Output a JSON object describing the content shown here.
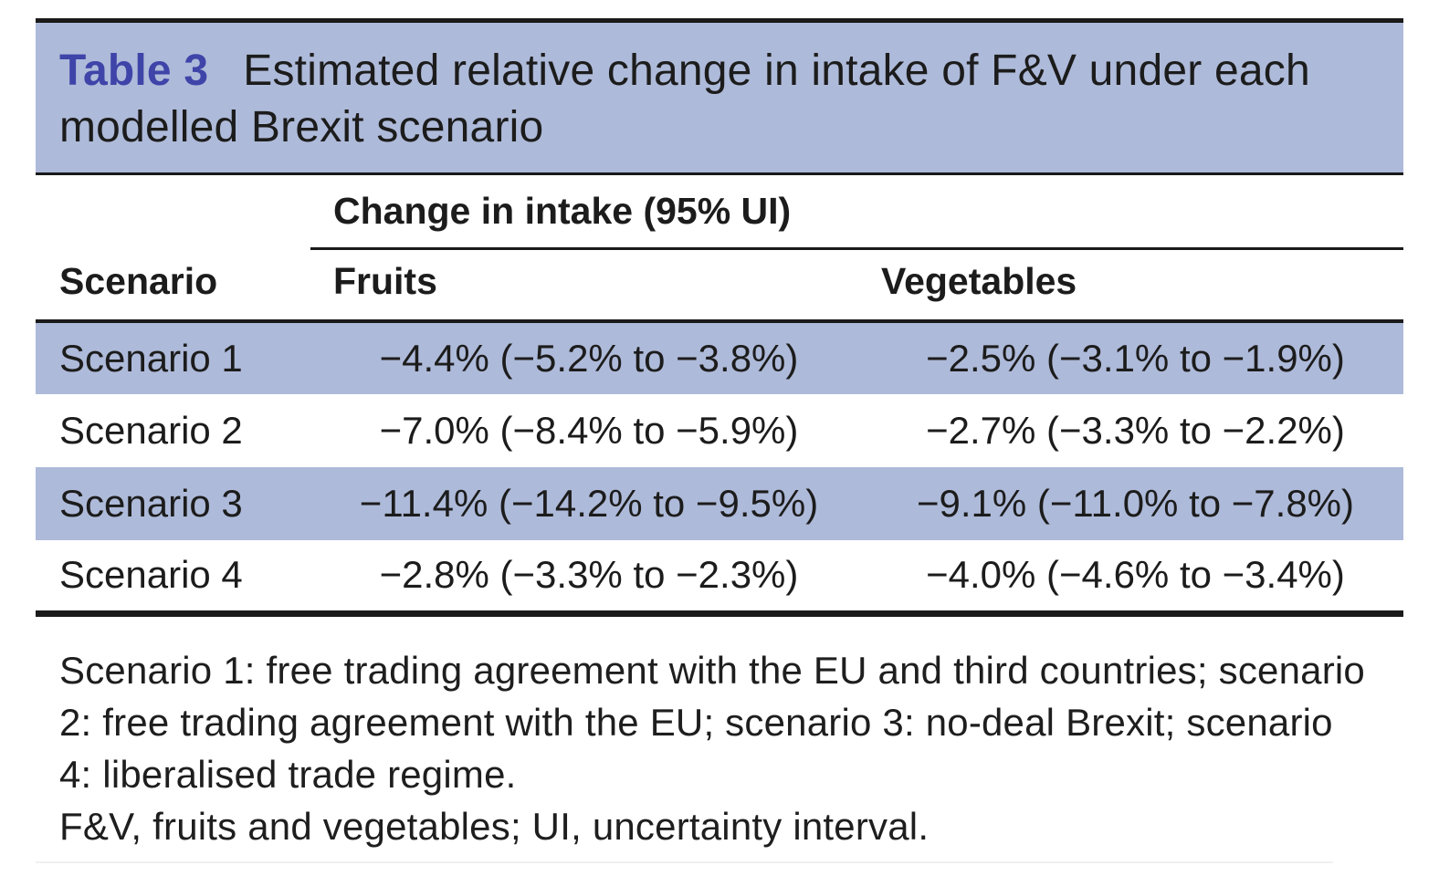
{
  "table": {
    "label": "Table 3",
    "title": "Estimated relative change in intake of F&V under each modelled Brexit scenario",
    "spanner": "Change in intake (95% UI)",
    "columns": {
      "scenario": "Scenario",
      "fruits": "Fruits",
      "vegetables": "Vegetables"
    },
    "rows": [
      {
        "scenario": "Scenario 1",
        "fruits": "−4.4% (−5.2% to −3.8%)",
        "vegetables": "−2.5% (−3.1% to −1.9%)"
      },
      {
        "scenario": "Scenario 2",
        "fruits": "−7.0% (−8.4% to −5.9%)",
        "vegetables": "−2.7% (−3.3% to −2.2%)"
      },
      {
        "scenario": "Scenario 3",
        "fruits": "−11.4% (−14.2% to −9.5%)",
        "vegetables": "−9.1% (−11.0% to −7.8%)"
      },
      {
        "scenario": "Scenario 4",
        "fruits": "−2.8% (−3.3% to −2.3%)",
        "vegetables": "−4.0% (−4.6% to −3.4%)"
      }
    ],
    "footnotes": [
      "Scenario 1: free trading agreement with the EU and third countries; scenario 2: free trading agreement with the EU; scenario 3: no-deal Brexit; scenario 4: liberalised trade regime.",
      "F&V, fruits and vegetables; UI, uncertainty interval."
    ],
    "colors": {
      "stripe": "#aebad9",
      "caption_background": "#aebad9",
      "label_text": "#3e44a8",
      "body_text": "#1c1c1c",
      "rule": "#1a1a1a"
    }
  }
}
